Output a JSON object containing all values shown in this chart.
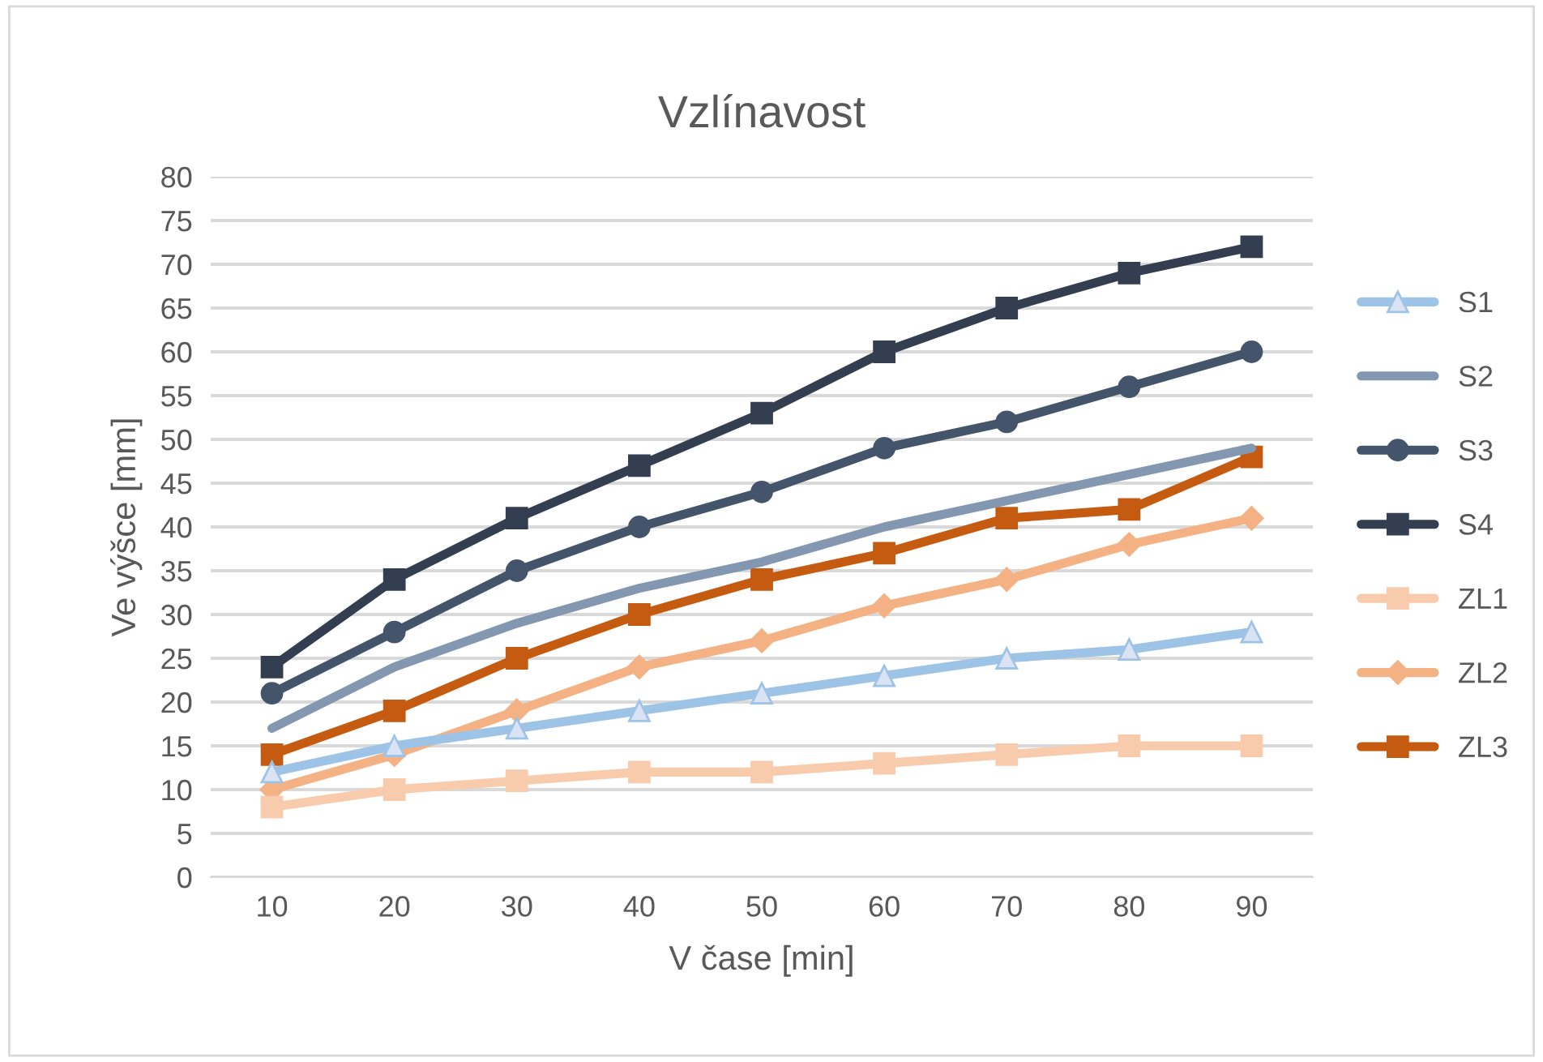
{
  "chart_data": {
    "type": "line",
    "title": "Vzlínavost",
    "xlabel": "V čase [min]",
    "ylabel": "Ve výšce [mm]",
    "categories": [
      "10",
      "20",
      "30",
      "40",
      "50",
      "60",
      "70",
      "80",
      "90"
    ],
    "ylim": [
      0,
      80
    ],
    "yticks": [
      0,
      5,
      10,
      15,
      20,
      25,
      30,
      35,
      40,
      45,
      50,
      55,
      60,
      65,
      70,
      75,
      80
    ],
    "grid": "y",
    "legend": "right",
    "line_style": "solid",
    "series": [
      {
        "name": "S1",
        "color": "#9dc3e6",
        "marker": "triangle",
        "values": [
          12,
          15,
          17,
          19,
          21,
          23,
          25,
          26,
          28
        ]
      },
      {
        "name": "S2",
        "color": "#8497b0",
        "marker": "none",
        "values": [
          17,
          24,
          29,
          33,
          36,
          40,
          43,
          46,
          49
        ]
      },
      {
        "name": "S3",
        "color": "#44546a",
        "marker": "circle",
        "values": [
          21,
          28,
          35,
          40,
          44,
          49,
          52,
          56,
          60
        ]
      },
      {
        "name": "S4",
        "color": "#333f50",
        "marker": "square",
        "values": [
          24,
          34,
          41,
          47,
          53,
          60,
          65,
          69,
          72
        ]
      },
      {
        "name": "ZL1",
        "color": "#f8cbad",
        "marker": "square",
        "values": [
          8,
          10,
          11,
          12,
          12,
          13,
          14,
          15,
          15
        ]
      },
      {
        "name": "ZL2",
        "color": "#f4b183",
        "marker": "diamond",
        "values": [
          10,
          14,
          19,
          24,
          27,
          31,
          34,
          38,
          41
        ]
      },
      {
        "name": "ZL3",
        "color": "#c55a11",
        "marker": "square",
        "values": [
          14,
          19,
          25,
          30,
          34,
          37,
          41,
          42,
          48
        ]
      }
    ]
  }
}
